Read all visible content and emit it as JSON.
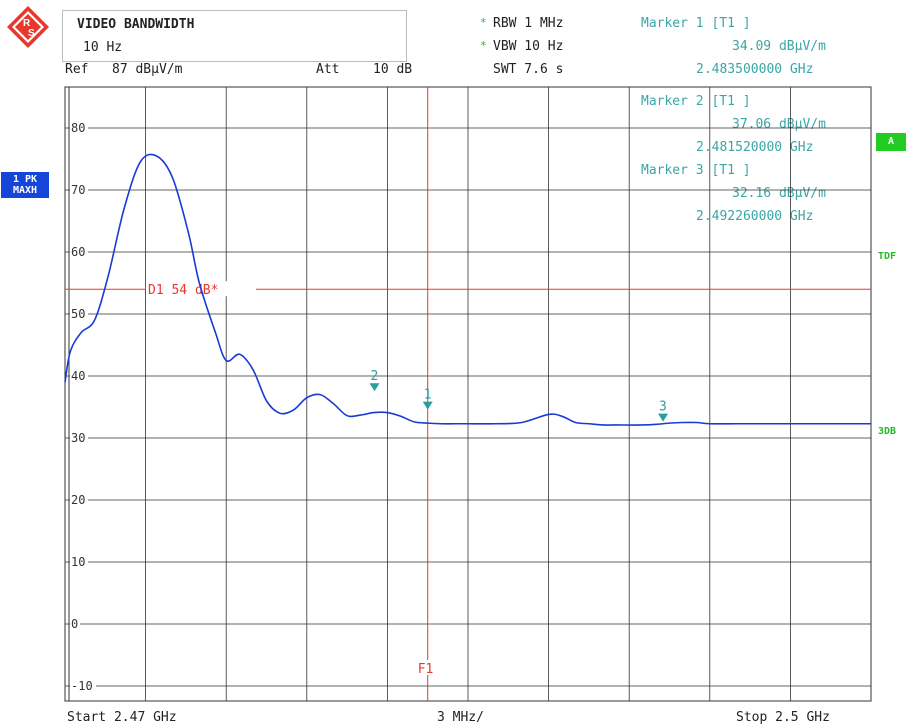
{
  "header": {
    "title": "VIDEO BANDWIDTH",
    "vbw_value": "10 Hz",
    "ref_label": "Ref",
    "ref_value": "87 dBµV/m",
    "att_label": "Att",
    "att_value": "10 dB",
    "rbw": "RBW 1 MHz",
    "vbw": "VBW 10 Hz",
    "swt": "SWT 7.6 s",
    "star": "*"
  },
  "markers": [
    {
      "label": "Marker 1 [T1 ]",
      "level": "34.09 dBµV/m",
      "freq": "2.483500000 GHz"
    },
    {
      "label": "Marker 2 [T1 ]",
      "level": "37.06 dBµV/m",
      "freq": "2.481520000 GHz"
    },
    {
      "label": "Marker 3 [T1 ]",
      "level": "32.16 dBµV/m",
      "freq": "2.492260000 GHz"
    }
  ],
  "side": {
    "trace_badge_line1": "1 PK",
    "trace_badge_line2": "MAXH",
    "a_badge": "A",
    "tdf": "TDF",
    "db3": "3DB"
  },
  "footer": {
    "start": "Start 2.47 GHz",
    "span": "3 MHz/",
    "stop": "Stop 2.5 GHz"
  },
  "colors": {
    "trace": "#1a3ad6",
    "grid": "#333333",
    "limit": "#e8382e",
    "marker": "#2a9e9e",
    "badge": "#1646d8",
    "green_badge": "#22cc22"
  },
  "chart_data": {
    "type": "line",
    "x_unit": "GHz",
    "y_unit": "dBµV/m",
    "xlim": [
      2.47,
      2.5
    ],
    "ylim": [
      -14,
      87
    ],
    "y_ticks": [
      -10,
      0,
      10,
      20,
      30,
      40,
      50,
      60,
      70,
      80
    ],
    "y_tick_labels": [
      "-10",
      "0",
      "10",
      "20",
      "30",
      "40",
      "50",
      "60",
      "70",
      "80"
    ],
    "x_gridlines": 10,
    "grid": true,
    "display_line": {
      "label": "D1 54 dB*",
      "value": 54
    },
    "frequency_line": {
      "label": "F1",
      "value": 2.4835
    },
    "series": [
      {
        "x": [
          2.47,
          2.4702,
          2.4706,
          2.4711,
          2.4716,
          2.4722,
          2.4728,
          2.4734,
          2.474,
          2.4746,
          2.475,
          2.4756,
          2.476,
          2.4765,
          2.477,
          2.4775,
          2.478,
          2.4785,
          2.479,
          2.4795,
          2.48,
          2.4805,
          2.481,
          2.4815,
          2.482,
          2.4825,
          2.483,
          2.4835,
          2.484,
          2.4845,
          2.485,
          2.486,
          2.487,
          2.488,
          2.4885,
          2.489,
          2.4895,
          2.49,
          2.4905,
          2.4915,
          2.492,
          2.4925,
          2.493,
          2.4935,
          2.494,
          2.495,
          2.496,
          2.497,
          2.5
        ],
        "y": [
          39,
          44,
          47,
          49,
          56,
          67,
          74.5,
          75.5,
          72,
          63,
          55,
          47,
          42.5,
          43.5,
          41,
          36,
          34,
          34.5,
          36.5,
          37,
          35.5,
          33.6,
          33.7,
          34.1,
          34.1,
          33.5,
          32.6,
          32.4,
          32.3,
          32.3,
          32.3,
          32.3,
          32.5,
          33.8,
          33.5,
          32.5,
          32.3,
          32.1,
          32.1,
          32.1,
          32.2,
          32.4,
          32.5,
          32.5,
          32.3,
          32.3,
          32.3,
          32.3,
          32.3
        ]
      }
    ],
    "markers": [
      {
        "id": "1",
        "x": 2.4835,
        "y": 34.09
      },
      {
        "id": "2",
        "x": 2.48152,
        "y": 37.06
      },
      {
        "id": "3",
        "x": 2.49226,
        "y": 32.16
      }
    ]
  }
}
